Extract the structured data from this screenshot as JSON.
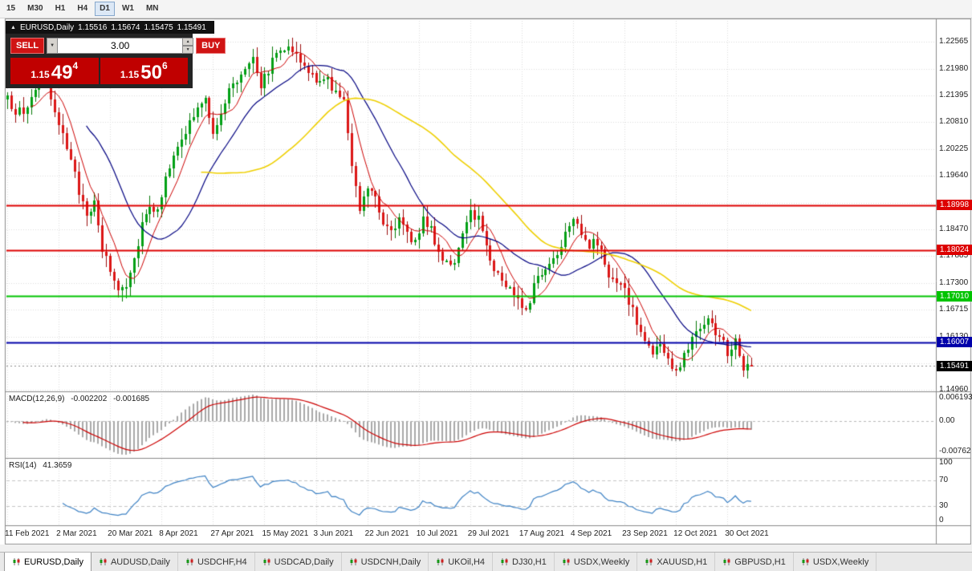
{
  "toolbar": {
    "timeframes": [
      "15",
      "M30",
      "H1",
      "H4",
      "D1",
      "W1",
      "MN"
    ],
    "active": "D1"
  },
  "chart_header": {
    "symbol": "EURUSD,Daily",
    "open": "1.15516",
    "high": "1.15674",
    "low": "1.15475",
    "close": "1.15491"
  },
  "trade_panel": {
    "sell": "SELL",
    "buy": "BUY",
    "volume": "3.00",
    "bid": {
      "prefix": "1.15",
      "big": "49",
      "sup": "4"
    },
    "ask": {
      "prefix": "1.15",
      "big": "50",
      "sup": "6"
    }
  },
  "price_axis": {
    "labels": [
      "1.22565",
      "1.21980",
      "1.21395",
      "1.20810",
      "1.20225",
      "1.19640",
      "1.19055",
      "1.18470",
      "1.17885",
      "1.17300",
      "1.16715",
      "1.16130",
      "1.15545",
      "1.14960"
    ]
  },
  "levels": {
    "hlines": [
      {
        "label": "1.18998",
        "price": 1.18998,
        "color": "#dd0000"
      },
      {
        "label": "1.18024",
        "price": 1.18024,
        "color": "#dd0000"
      },
      {
        "label": "1.17010",
        "price": 1.1701,
        "color": "#00c400"
      },
      {
        "label": "1.16007",
        "price": 1.16007,
        "color": "#0000aa"
      }
    ],
    "current": {
      "label": "1.15491",
      "price": 1.15491,
      "color": "#000000"
    }
  },
  "macd_panel": {
    "label": "MACD(12,26,9)",
    "main_value": "-0.002202",
    "signal_value": "-0.001685",
    "axis_max": "0.006193",
    "axis_zero": "0.00",
    "axis_min": "-0.00762"
  },
  "rsi_panel": {
    "label": "RSI(14)",
    "value": "41.3659",
    "axis": [
      "100",
      "70",
      "30",
      "0"
    ]
  },
  "tabs": [
    {
      "label": "EURUSD,Daily",
      "active": true
    },
    {
      "label": "AUDUSD,Daily",
      "active": false
    },
    {
      "label": "USDCHF,H4",
      "active": false
    },
    {
      "label": "USDCAD,Daily",
      "active": false
    },
    {
      "label": "USDCNH,Daily",
      "active": false
    },
    {
      "label": "UKOil,H4",
      "active": false
    },
    {
      "label": "DJ30,H1",
      "active": false
    },
    {
      "label": "USDX,Weekly",
      "active": false
    },
    {
      "label": "XAUUSD,H1",
      "active": false
    },
    {
      "label": "GBPUSD,H1",
      "active": false
    },
    {
      "label": "USDX,Weekly",
      "active": false
    }
  ],
  "chart_data": {
    "type": "candlestick",
    "symbol": "EURUSD",
    "timeframe": "Daily",
    "bars": 189,
    "x_labels": [
      "11 Feb 2021",
      "2 Mar 2021",
      "20 Mar 2021",
      "8 Apr 2021",
      "27 Apr 2021",
      "15 May 2021",
      "3 Jun 2021",
      "22 Jun 2021",
      "10 Jul 2021",
      "29 Jul 2021",
      "17 Aug 2021",
      "4 Sep 2021",
      "23 Sep 2021",
      "12 Oct 2021",
      "30 Oct 2021"
    ],
    "x_label_step": 13,
    "price_top": 1.23025,
    "price_bottom": 1.1495,
    "last_candle": {
      "open": 1.15516,
      "high": 1.15674,
      "low": 1.15475,
      "close": 1.15491
    },
    "close_anchors": [
      [
        0,
        1.2128
      ],
      [
        2,
        1.211
      ],
      [
        4,
        1.2096
      ],
      [
        6,
        1.2138
      ],
      [
        8,
        1.2172
      ],
      [
        10,
        1.216
      ],
      [
        12,
        1.2092
      ],
      [
        14,
        1.2068
      ],
      [
        16,
        1.1992
      ],
      [
        18,
        1.193
      ],
      [
        20,
        1.1888
      ],
      [
        22,
        1.1898
      ],
      [
        24,
        1.1802
      ],
      [
        26,
        1.1758
      ],
      [
        28,
        1.1716
      ],
      [
        30,
        1.1732
      ],
      [
        32,
        1.1782
      ],
      [
        34,
        1.1862
      ],
      [
        36,
        1.1905
      ],
      [
        38,
        1.1882
      ],
      [
        40,
        1.1972
      ],
      [
        42,
        1.2002
      ],
      [
        44,
        1.2038
      ],
      [
        46,
        1.2082
      ],
      [
        48,
        1.2108
      ],
      [
        50,
        1.2128
      ],
      [
        52,
        1.2066
      ],
      [
        54,
        1.2092
      ],
      [
        56,
        1.2152
      ],
      [
        58,
        1.2172
      ],
      [
        60,
        1.2202
      ],
      [
        62,
        1.2232
      ],
      [
        64,
        1.2162
      ],
      [
        66,
        1.2198
      ],
      [
        68,
        1.2232
      ],
      [
        71,
        1.2256
      ],
      [
        73,
        1.2226
      ],
      [
        75,
        1.2196
      ],
      [
        77,
        1.2186
      ],
      [
        79,
        1.2162
      ],
      [
        81,
        1.2176
      ],
      [
        83,
        1.2146
      ],
      [
        85,
        1.2122
      ],
      [
        87,
        1.1996
      ],
      [
        89,
        1.1896
      ],
      [
        91,
        1.1942
      ],
      [
        93,
        1.1926
      ],
      [
        95,
        1.1862
      ],
      [
        97,
        1.1852
      ],
      [
        99,
        1.1866
      ],
      [
        101,
        1.1832
      ],
      [
        103,
        1.1822
      ],
      [
        105,
        1.1876
      ],
      [
        107,
        1.1842
      ],
      [
        109,
        1.1796
      ],
      [
        111,
        1.1782
      ],
      [
        113,
        1.1772
      ],
      [
        115,
        1.1826
      ],
      [
        117,
        1.1886
      ],
      [
        119,
        1.1872
      ],
      [
        121,
        1.1816
      ],
      [
        123,
        1.1762
      ],
      [
        125,
        1.1736
      ],
      [
        127,
        1.1716
      ],
      [
        129,
        1.1702
      ],
      [
        131,
        1.1672
      ],
      [
        133,
        1.1722
      ],
      [
        135,
        1.1752
      ],
      [
        137,
        1.1772
      ],
      [
        139,
        1.1796
      ],
      [
        141,
        1.1842
      ],
      [
        143,
        1.1882
      ],
      [
        145,
        1.1842
      ],
      [
        147,
        1.1812
      ],
      [
        149,
        1.1816
      ],
      [
        151,
        1.1772
      ],
      [
        153,
        1.1732
      ],
      [
        155,
        1.1726
      ],
      [
        157,
        1.1692
      ],
      [
        159,
        1.1642
      ],
      [
        161,
        1.1602
      ],
      [
        163,
        1.1582
      ],
      [
        165,
        1.1592
      ],
      [
        167,
        1.1562
      ],
      [
        169,
        1.153
      ],
      [
        171,
        1.1572
      ],
      [
        173,
        1.1612
      ],
      [
        175,
        1.1636
      ],
      [
        177,
        1.1652
      ],
      [
        179,
        1.1622
      ],
      [
        181,
        1.1606
      ],
      [
        182,
        1.1562
      ],
      [
        183,
        1.1592
      ],
      [
        184,
        1.1612
      ],
      [
        185,
        1.1582
      ],
      [
        186,
        1.1546
      ],
      [
        187,
        1.1554
      ],
      [
        188,
        1.15491
      ]
    ],
    "up_color": "#00a014",
    "down_color": "#dc1616",
    "ma_lines": [
      {
        "period": 7,
        "color": "#cc0000"
      },
      {
        "period": 21,
        "color": "#000080"
      },
      {
        "period": 50,
        "color": "#eecf00"
      }
    ],
    "macd": {
      "fast": 12,
      "slow": 26,
      "signal": 9,
      "hist_color": "#a8a8a8",
      "signal_color": "#cc0000",
      "axis_max": 0.006193,
      "axis_min": -0.00762
    },
    "rsi": {
      "period": 14,
      "color": "#3e82c4",
      "upper": 70,
      "lower": 30
    }
  }
}
